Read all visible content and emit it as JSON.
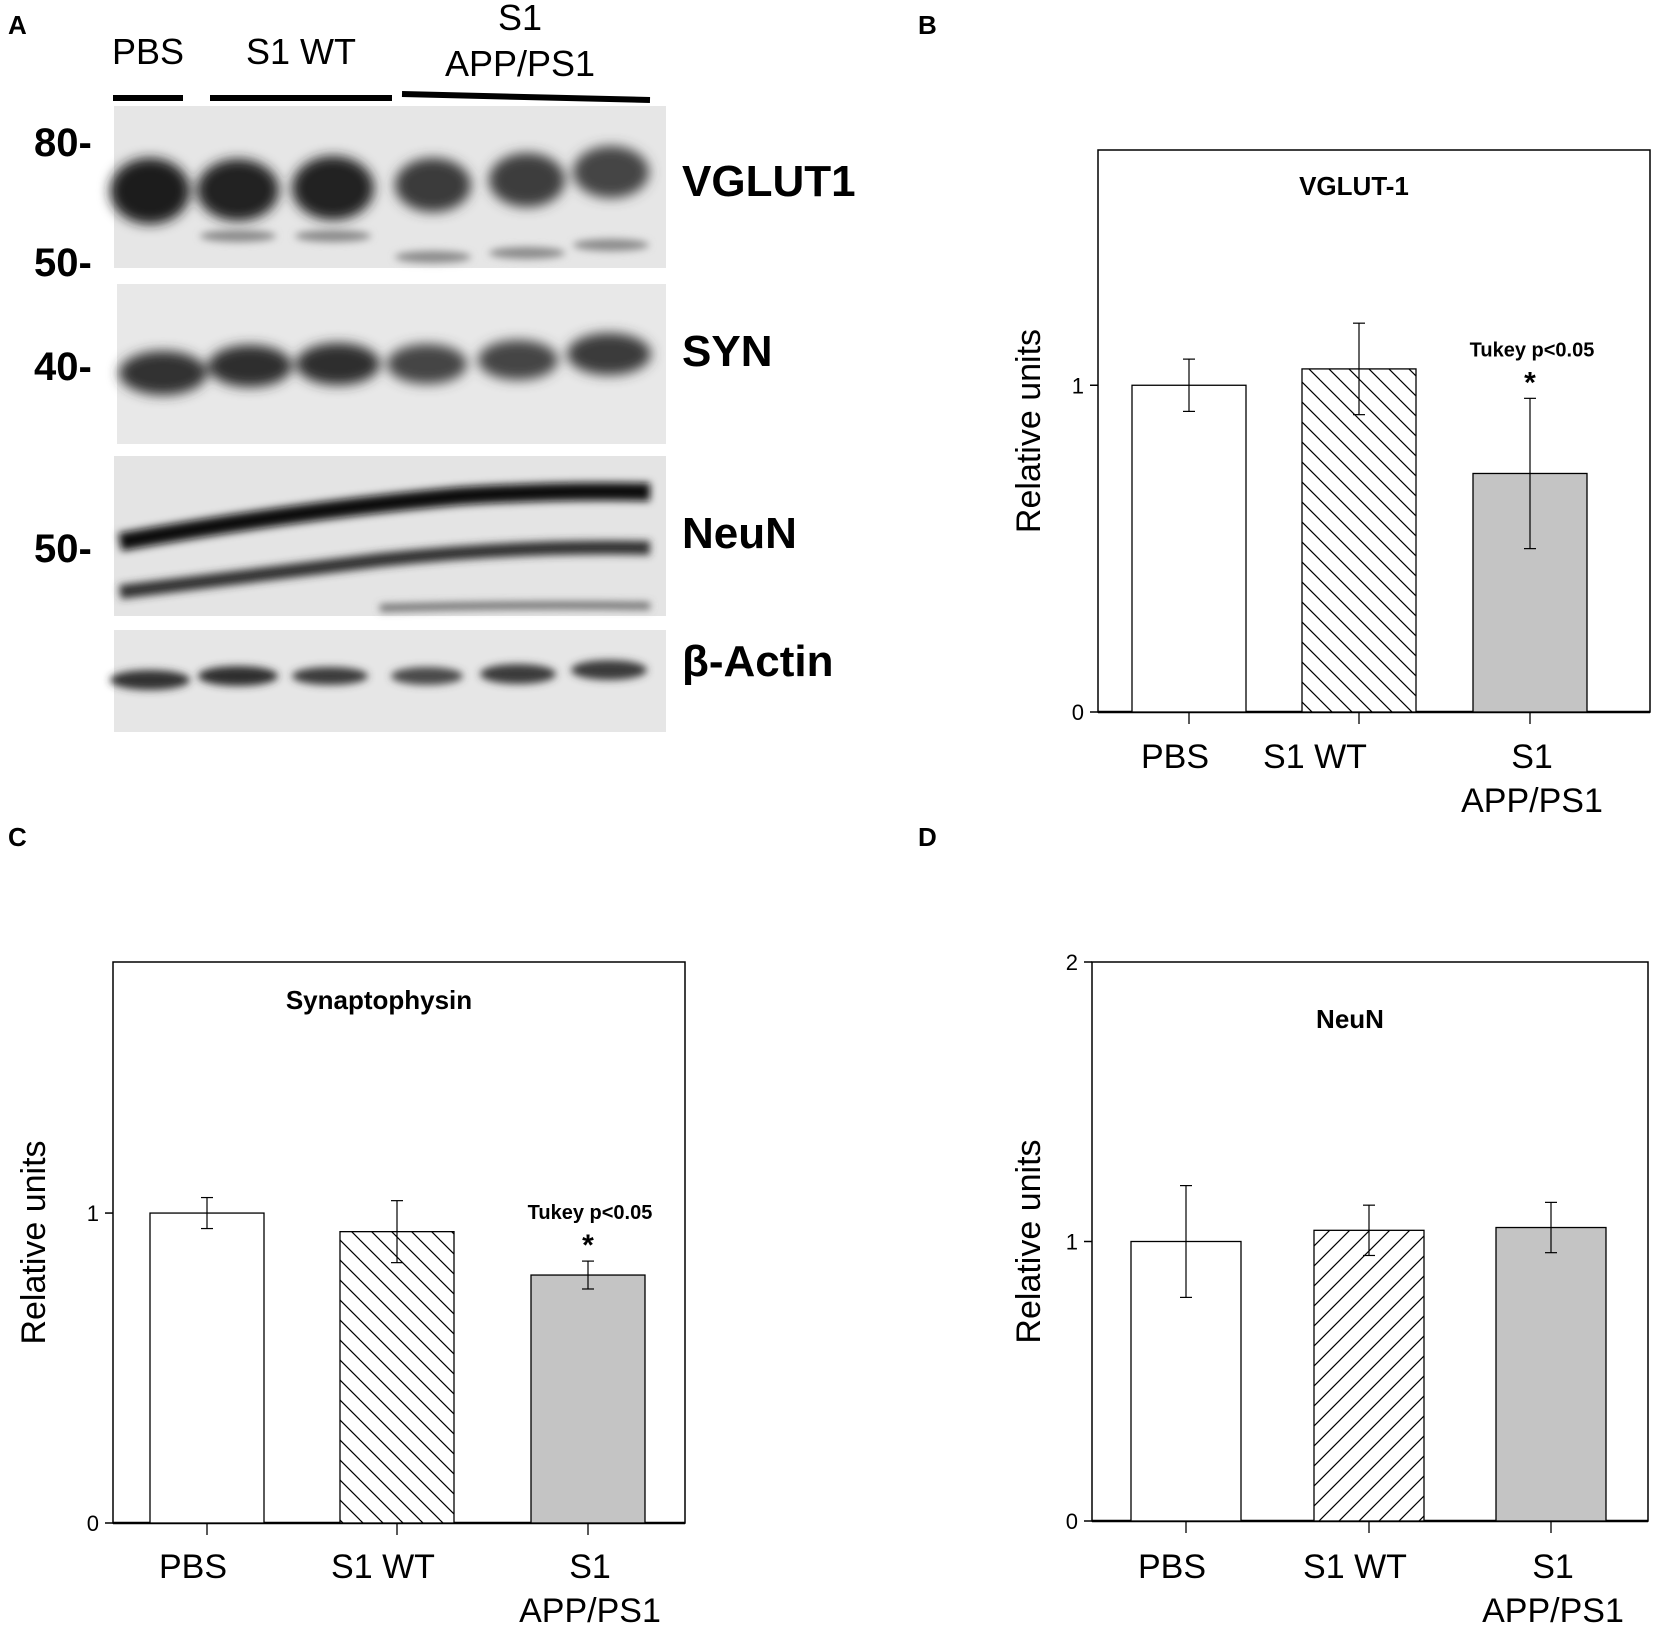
{
  "panels": {
    "A": "A",
    "B": "B",
    "C": "C",
    "D": "D"
  },
  "blot": {
    "lane_groups": [
      {
        "label_lines": [
          "PBS"
        ]
      },
      {
        "label_lines": [
          "S1 WT"
        ]
      },
      {
        "label_lines": [
          "S1",
          "APP/PS1"
        ]
      }
    ],
    "mw_markers": [
      "80-",
      "50-",
      "40-",
      "50-"
    ],
    "bands": [
      "VGLUT1",
      "SYN",
      "NeuN",
      "β-Actin"
    ]
  },
  "colors": {
    "pbs_fill": "#ffffff",
    "wt_hatch": "#000000",
    "app_fill": "#c4c4c4",
    "axis": "#000000"
  },
  "chart_data": [
    {
      "type": "bar",
      "panel": "B",
      "title": "VGLUT-1",
      "ylabel": "Relative units",
      "ylim": [
        0,
        1.72
      ],
      "yticks": [
        0,
        1
      ],
      "categories": [
        "PBS",
        "S1 WT",
        "S1\nAPP/PS1"
      ],
      "values": [
        1.0,
        1.05,
        0.73
      ],
      "errors": [
        0.08,
        0.14,
        0.23
      ],
      "fills": [
        "white",
        "hatch-back",
        "gray"
      ],
      "annotation": {
        "category_index": 2,
        "text": "Tukey p<0.05",
        "marker": "*"
      }
    },
    {
      "type": "bar",
      "panel": "C",
      "title": "Synaptophysin",
      "ylabel": "Relative units",
      "ylim": [
        0,
        1.81
      ],
      "yticks": [
        0,
        1
      ],
      "categories": [
        "PBS",
        "S1 WT",
        "S1\nAPP/PS1"
      ],
      "values": [
        1.0,
        0.94,
        0.8
      ],
      "errors": [
        0.05,
        0.1,
        0.045
      ],
      "fills": [
        "white",
        "hatch-back",
        "gray"
      ],
      "annotation": {
        "category_index": 2,
        "text": "Tukey p<0.05",
        "marker": "*"
      }
    },
    {
      "type": "bar",
      "panel": "D",
      "title": "NeuN",
      "ylabel": "Relative units",
      "ylim": [
        0,
        2
      ],
      "yticks": [
        0,
        1,
        2
      ],
      "categories": [
        "PBS",
        "S1 WT",
        "S1\nAPP/PS1"
      ],
      "values": [
        1.0,
        1.04,
        1.05
      ],
      "errors": [
        0.2,
        0.09,
        0.09
      ],
      "fills": [
        "white",
        "hatch-fwd",
        "gray"
      ]
    }
  ]
}
